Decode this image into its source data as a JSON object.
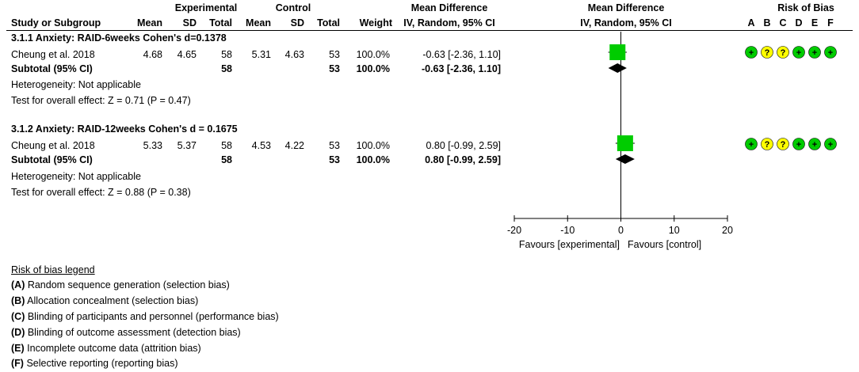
{
  "header": {
    "group_experimental": "Experimental",
    "group_control": "Control",
    "group_md": "Mean Difference",
    "group_md_plot": "Mean Difference",
    "group_rob": "Risk of Bias",
    "study": "Study or Subgroup",
    "e_mean": "Mean",
    "e_sd": "SD",
    "e_total": "Total",
    "c_mean": "Mean",
    "c_sd": "SD",
    "c_total": "Total",
    "weight": "Weight",
    "md_method": "IV, Random, 95% CI",
    "plot_method": "IV, Random, 95% CI",
    "rob_letters": [
      "A",
      "B",
      "C",
      "D",
      "E",
      "F"
    ]
  },
  "subgroups": [
    {
      "title": "3.1.1 Anxiety: RAID-6weeks Cohen's d=0.1378",
      "study": {
        "name": "Cheung et al. 2018",
        "e_mean": "4.68",
        "e_sd": "4.65",
        "e_total": "58",
        "c_mean": "5.31",
        "c_sd": "4.63",
        "c_total": "53",
        "weight": "100.0%",
        "md_text": "-0.63 [-2.36, 1.10]"
      },
      "subtotal": {
        "label": "Subtotal (95% CI)",
        "e_total": "58",
        "c_total": "53",
        "weight": "100.0%",
        "md_text": "-0.63 [-2.36, 1.10]"
      },
      "heterogeneity": "Heterogeneity: Not applicable",
      "overall_effect": "Test for overall effect: Z = 0.71 (P = 0.47)",
      "rob": [
        "+",
        "?",
        "?",
        "+",
        "+",
        "+"
      ]
    },
    {
      "title": "3.1.2 Anxiety: RAID-12weeks Cohen's d = 0.1675",
      "study": {
        "name": "Cheung et al. 2018",
        "e_mean": "5.33",
        "e_sd": "5.37",
        "e_total": "58",
        "c_mean": "4.53",
        "c_sd": "4.22",
        "c_total": "53",
        "weight": "100.0%",
        "md_text": "0.80 [-0.99, 2.59]"
      },
      "subtotal": {
        "label": "Subtotal (95% CI)",
        "e_total": "58",
        "c_total": "53",
        "weight": "100.0%",
        "md_text": "0.80 [-0.99, 2.59]"
      },
      "heterogeneity": "Heterogeneity: Not applicable",
      "overall_effect": "Test for overall effect: Z = 0.88 (P = 0.38)",
      "rob": [
        "+",
        "?",
        "?",
        "+",
        "+",
        "+"
      ]
    }
  ],
  "axis": {
    "ticks": [
      -20,
      -10,
      0,
      10,
      20
    ],
    "tick_labels": [
      "-20",
      "-10",
      "0",
      "10",
      "20"
    ],
    "favours_left": "Favours [experimental]",
    "favours_right": "Favours [control]"
  },
  "legend": {
    "title": "Risk of bias legend",
    "items": [
      {
        "letter": "(A)",
        "text": " Random sequence generation (selection bias)"
      },
      {
        "letter": "(B)",
        "text": " Allocation concealment (selection bias)"
      },
      {
        "letter": "(C)",
        "text": " Blinding of participants and personnel (performance bias)"
      },
      {
        "letter": "(D)",
        "text": " Blinding of outcome assessment (detection bias)"
      },
      {
        "letter": "(E)",
        "text": " Incomplete outcome data (attrition bias)"
      },
      {
        "letter": "(F)",
        "text": " Selective reporting (reporting bias)"
      }
    ]
  },
  "colors": {
    "study_square": "#00cc00",
    "rob_low": "#00cc00",
    "rob_unclear": "#ffff00",
    "diamond": "#000000"
  },
  "chart_data": {
    "type": "forest",
    "xlim": [
      -20,
      20
    ],
    "studies": [
      {
        "subgroup": "3.1.1",
        "md": -0.63,
        "ci": [
          -2.36,
          1.1
        ],
        "weight": 100.0
      },
      {
        "subgroup": "3.1.2",
        "md": 0.8,
        "ci": [
          -0.99,
          2.59
        ],
        "weight": 100.0
      }
    ],
    "subtotals": [
      {
        "subgroup": "3.1.1",
        "md": -0.63,
        "ci": [
          -2.36,
          1.1
        ]
      },
      {
        "subgroup": "3.1.2",
        "md": 0.8,
        "ci": [
          -0.99,
          2.59
        ]
      }
    ]
  }
}
